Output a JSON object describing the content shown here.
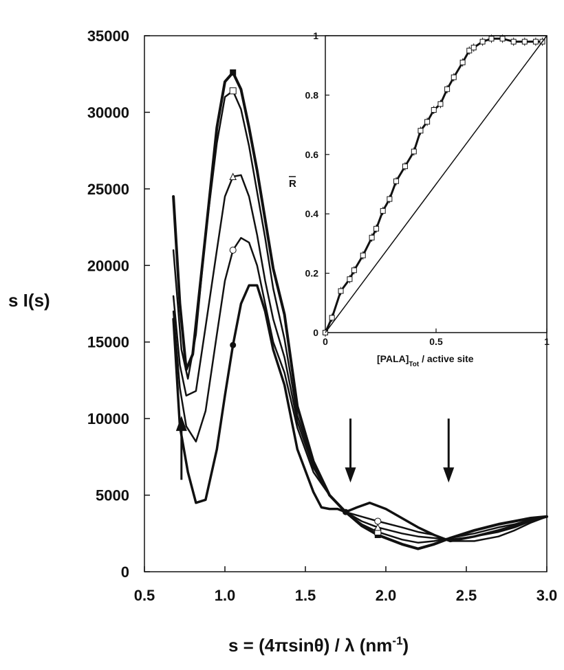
{
  "chart_data": [
    {
      "type": "line",
      "xlabel": "s = (4πsinθ) / λ (nm",
      "xlabel_superscript": "-1",
      "xlabel_close": ")",
      "ylabel": "s I(s)",
      "xlim": [
        0.5,
        3.0
      ],
      "ylim": [
        0,
        35000
      ],
      "x_ticks": [
        "0.5",
        "1.0",
        "1.5",
        "2.0",
        "2.5",
        "3.0"
      ],
      "y_ticks": [
        "0",
        "5000",
        "10000",
        "15000",
        "20000",
        "25000",
        "30000",
        "35000"
      ],
      "grid": false,
      "series": [
        {
          "marker": "square-filled",
          "points": [
            [
              0.68,
              24500
            ],
            [
              0.72,
              17500
            ],
            [
              0.76,
              13200
            ],
            [
              0.8,
              14200
            ],
            [
              0.88,
              22000
            ],
            [
              0.95,
              29000
            ],
            [
              1.0,
              32000
            ],
            [
              1.05,
              32600
            ],
            [
              1.1,
              31500
            ],
            [
              1.15,
              29000
            ],
            [
              1.2,
              26200
            ],
            [
              1.25,
              23000
            ],
            [
              1.3,
              19800
            ],
            [
              1.37,
              16800
            ],
            [
              1.45,
              10800
            ],
            [
              1.55,
              7200
            ],
            [
              1.65,
              5000
            ],
            [
              1.75,
              3900
            ],
            [
              1.85,
              3000
            ],
            [
              1.95,
              2400
            ],
            [
              2.1,
              1800
            ],
            [
              2.2,
              1500
            ],
            [
              2.3,
              1800
            ],
            [
              2.4,
              2200
            ],
            [
              2.55,
              2700
            ],
            [
              2.7,
              3100
            ],
            [
              2.8,
              3300
            ],
            [
              2.9,
              3500
            ],
            [
              3.0,
              3600
            ]
          ]
        },
        {
          "marker": "square-open",
          "points": [
            [
              0.68,
              21000
            ],
            [
              0.73,
              14500
            ],
            [
              0.77,
              12600
            ],
            [
              0.82,
              15500
            ],
            [
              0.88,
              22000
            ],
            [
              0.95,
              28000
            ],
            [
              1.0,
              31000
            ],
            [
              1.05,
              31400
            ],
            [
              1.1,
              30200
            ],
            [
              1.15,
              27800
            ],
            [
              1.2,
              24800
            ],
            [
              1.25,
              21800
            ],
            [
              1.3,
              18500
            ],
            [
              1.37,
              15200
            ],
            [
              1.45,
              10200
            ],
            [
              1.55,
              7000
            ],
            [
              1.65,
              5000
            ],
            [
              1.75,
              3900
            ],
            [
              1.85,
              3100
            ],
            [
              1.95,
              2600
            ],
            [
              2.1,
              2100
            ],
            [
              2.2,
              1900
            ],
            [
              2.3,
              2000
            ],
            [
              2.4,
              2200
            ],
            [
              2.55,
              2500
            ],
            [
              2.7,
              2900
            ],
            [
              2.8,
              3100
            ],
            [
              2.9,
              3400
            ],
            [
              3.0,
              3600
            ]
          ]
        },
        {
          "marker": "triangle-open",
          "points": [
            [
              0.68,
              18000
            ],
            [
              0.72,
              13500
            ],
            [
              0.76,
              11500
            ],
            [
              0.82,
              11800
            ],
            [
              0.88,
              16000
            ],
            [
              0.95,
              21000
            ],
            [
              1.0,
              24500
            ],
            [
              1.05,
              25800
            ],
            [
              1.1,
              25900
            ],
            [
              1.15,
              24500
            ],
            [
              1.2,
              22000
            ],
            [
              1.25,
              19000
            ],
            [
              1.3,
              16500
            ],
            [
              1.37,
              14000
            ],
            [
              1.45,
              9800
            ],
            [
              1.55,
              6800
            ],
            [
              1.65,
              5000
            ],
            [
              1.75,
              3900
            ],
            [
              1.85,
              3300
            ],
            [
              1.95,
              2900
            ],
            [
              2.1,
              2500
            ],
            [
              2.2,
              2300
            ],
            [
              2.3,
              2200
            ],
            [
              2.4,
              2100
            ],
            [
              2.55,
              2300
            ],
            [
              2.7,
              2600
            ],
            [
              2.8,
              2900
            ],
            [
              2.9,
              3300
            ],
            [
              3.0,
              3600
            ]
          ]
        },
        {
          "marker": "circle-open",
          "points": [
            [
              0.68,
              17000
            ],
            [
              0.72,
              12000
            ],
            [
              0.76,
              9500
            ],
            [
              0.82,
              8500
            ],
            [
              0.88,
              10500
            ],
            [
              0.95,
              15500
            ],
            [
              1.0,
              19000
            ],
            [
              1.05,
              21000
            ],
            [
              1.1,
              21800
            ],
            [
              1.15,
              21500
            ],
            [
              1.2,
              20000
            ],
            [
              1.25,
              17500
            ],
            [
              1.3,
              15000
            ],
            [
              1.37,
              13000
            ],
            [
              1.45,
              9400
            ],
            [
              1.55,
              6500
            ],
            [
              1.65,
              5000
            ],
            [
              1.75,
              3900
            ],
            [
              1.85,
              3600
            ],
            [
              1.95,
              3300
            ],
            [
              2.1,
              2900
            ],
            [
              2.2,
              2600
            ],
            [
              2.3,
              2400
            ],
            [
              2.4,
              2000
            ],
            [
              2.55,
              2000
            ],
            [
              2.7,
              2300
            ],
            [
              2.8,
              2700
            ],
            [
              2.9,
              3200
            ],
            [
              3.0,
              3600
            ]
          ]
        },
        {
          "marker": "circle-filled",
          "points": [
            [
              0.68,
              16500
            ],
            [
              0.72,
              9500
            ],
            [
              0.77,
              6500
            ],
            [
              0.82,
              4500
            ],
            [
              0.88,
              4700
            ],
            [
              0.95,
              8000
            ],
            [
              1.0,
              11500
            ],
            [
              1.05,
              14800
            ],
            [
              1.1,
              17500
            ],
            [
              1.15,
              18700
            ],
            [
              1.2,
              18700
            ],
            [
              1.25,
              17000
            ],
            [
              1.3,
              14500
            ],
            [
              1.37,
              12200
            ],
            [
              1.45,
              8000
            ],
            [
              1.55,
              5200
            ],
            [
              1.6,
              4200
            ],
            [
              1.65,
              4100
            ],
            [
              1.7,
              4100
            ],
            [
              1.75,
              3900
            ],
            [
              1.82,
              4200
            ],
            [
              1.9,
              4500
            ],
            [
              2.0,
              4100
            ],
            [
              2.1,
              3500
            ],
            [
              2.2,
              2900
            ],
            [
              2.3,
              2400
            ],
            [
              2.4,
              2000
            ],
            [
              2.55,
              2300
            ],
            [
              2.7,
              2700
            ],
            [
              2.8,
              3000
            ],
            [
              2.9,
              3300
            ],
            [
              3.0,
              3600
            ]
          ]
        }
      ],
      "arrows": [
        {
          "direction": "up",
          "x": 0.73,
          "y_from": 6000,
          "y_to": 10000
        },
        {
          "direction": "down",
          "x": 1.78,
          "y_from": 10000,
          "y_to": 6000
        },
        {
          "direction": "down",
          "x": 2.39,
          "y_from": 10000,
          "y_to": 6000
        }
      ]
    },
    {
      "type": "line",
      "inset": true,
      "ylabel": "R",
      "ylabel_overbar": true,
      "xlabel": "[PALA]",
      "xlabel_subscript": "Tot",
      "xlabel_suffix": " / active site",
      "xlim": [
        0,
        1
      ],
      "ylim": [
        0,
        1
      ],
      "x_ticks": [
        "0",
        "0.5",
        "1"
      ],
      "y_ticks": [
        "0",
        "0.2",
        "0.4",
        "0.6",
        "0.8",
        "1"
      ],
      "grid": false,
      "series": [
        {
          "marker": "square-open",
          "points": [
            [
              0,
              0
            ],
            [
              0.03,
              0.05
            ],
            [
              0.07,
              0.14
            ],
            [
              0.11,
              0.18
            ],
            [
              0.13,
              0.21
            ],
            [
              0.17,
              0.26
            ],
            [
              0.21,
              0.32
            ],
            [
              0.23,
              0.35
            ],
            [
              0.26,
              0.41
            ],
            [
              0.29,
              0.45
            ],
            [
              0.32,
              0.51
            ],
            [
              0.36,
              0.56
            ],
            [
              0.4,
              0.61
            ],
            [
              0.43,
              0.68
            ],
            [
              0.46,
              0.71
            ],
            [
              0.49,
              0.75
            ],
            [
              0.52,
              0.77
            ],
            [
              0.55,
              0.82
            ],
            [
              0.58,
              0.86
            ],
            [
              0.62,
              0.91
            ],
            [
              0.65,
              0.95
            ],
            [
              0.67,
              0.96
            ],
            [
              0.71,
              0.98
            ],
            [
              0.75,
              0.99
            ],
            [
              0.8,
              0.99
            ],
            [
              0.85,
              0.98
            ],
            [
              0.9,
              0.98
            ],
            [
              0.95,
              0.98
            ],
            [
              0.98,
              0.98
            ]
          ]
        },
        {
          "marker": "none",
          "points": [
            [
              0,
              0
            ],
            [
              1,
              1
            ]
          ]
        },
        {
          "marker": "none",
          "points": [
            [
              0.75,
              1
            ],
            [
              1,
              1
            ]
          ]
        }
      ]
    }
  ]
}
